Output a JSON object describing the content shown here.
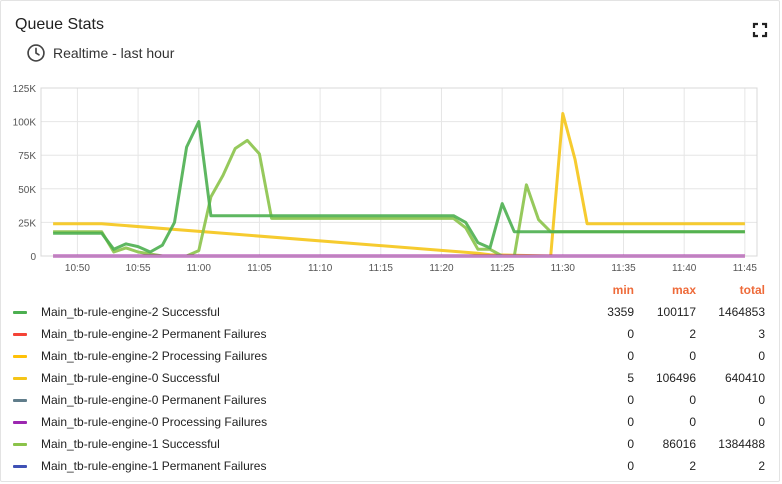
{
  "widget": {
    "title": "Queue Stats",
    "timewindow": "Realtime - last hour",
    "clock_icon": "clock-icon",
    "fullscreen_icon": "fullscreen-icon"
  },
  "legend_header": {
    "min": "min",
    "max": "max",
    "total": "total"
  },
  "legend": [
    {
      "name": "Main_tb-rule-engine-2 Successful",
      "color": "#4caf50",
      "min": "3359",
      "max": "100117",
      "total": "1464853"
    },
    {
      "name": "Main_tb-rule-engine-2 Permanent Failures",
      "color": "#f44336",
      "min": "0",
      "max": "2",
      "total": "3"
    },
    {
      "name": "Main_tb-rule-engine-2 Processing Failures",
      "color": "#ffc107",
      "min": "0",
      "max": "0",
      "total": "0"
    },
    {
      "name": "Main_tb-rule-engine-0 Successful",
      "color": "#f5c518",
      "min": "5",
      "max": "106496",
      "total": "640410"
    },
    {
      "name": "Main_tb-rule-engine-0 Permanent Failures",
      "color": "#607d8b",
      "min": "0",
      "max": "0",
      "total": "0"
    },
    {
      "name": "Main_tb-rule-engine-0 Processing Failures",
      "color": "#9c27b0",
      "min": "0",
      "max": "0",
      "total": "0"
    },
    {
      "name": "Main_tb-rule-engine-1 Successful",
      "color": "#8bc34a",
      "min": "0",
      "max": "86016",
      "total": "1384488"
    },
    {
      "name": "Main_tb-rule-engine-1 Permanent Failures",
      "color": "#3f51b5",
      "min": "0",
      "max": "2",
      "total": "2"
    }
  ],
  "chart_data": {
    "type": "line",
    "x_unit": "minutes",
    "xlim": [
      "10:47",
      "11:46"
    ],
    "ylim": [
      0,
      125000
    ],
    "grid": true,
    "x_ticks": [
      "10:50",
      "10:55",
      "11:00",
      "11:05",
      "11:10",
      "11:15",
      "11:20",
      "11:25",
      "11:30",
      "11:35",
      "11:40",
      "11:45"
    ],
    "y_ticks": [
      {
        "label": "0",
        "value": 0
      },
      {
        "label": "25K",
        "value": 25000
      },
      {
        "label": "50K",
        "value": 50000
      },
      {
        "label": "75K",
        "value": 75000
      },
      {
        "label": "100K",
        "value": 100000
      },
      {
        "label": "125K",
        "value": 125000
      }
    ],
    "series": [
      {
        "name": "Main_tb-rule-engine-0 Successful",
        "color": "#f5c518",
        "points": [
          [
            "10:48",
            24000
          ],
          [
            "10:52",
            24000
          ],
          [
            "11:23",
            2000
          ],
          [
            "11:24",
            1000
          ],
          [
            "11:29",
            0
          ],
          [
            "11:30",
            106000
          ],
          [
            "11:31",
            72000
          ],
          [
            "11:32",
            24000
          ],
          [
            "11:45",
            24000
          ]
        ]
      },
      {
        "name": "Main_tb-rule-engine-1 Successful",
        "color": "#8bc34a",
        "points": [
          [
            "10:48",
            18000
          ],
          [
            "10:52",
            18000
          ],
          [
            "10:53",
            3000
          ],
          [
            "10:54",
            6000
          ],
          [
            "10:55",
            3000
          ],
          [
            "10:57",
            0
          ],
          [
            "10:59",
            0
          ],
          [
            "11:00",
            4000
          ],
          [
            "11:01",
            44000
          ],
          [
            "11:02",
            60000
          ],
          [
            "11:03",
            80000
          ],
          [
            "11:04",
            86000
          ],
          [
            "11:05",
            76000
          ],
          [
            "11:06",
            28000
          ],
          [
            "11:21",
            28000
          ],
          [
            "11:22",
            21000
          ],
          [
            "11:23",
            5000
          ],
          [
            "11:24",
            5000
          ],
          [
            "11:25",
            0
          ],
          [
            "11:26",
            0
          ],
          [
            "11:27",
            53000
          ],
          [
            "11:28",
            27000
          ],
          [
            "11:29",
            18000
          ],
          [
            "11:45",
            18000
          ]
        ]
      },
      {
        "name": "Main_tb-rule-engine-2 Successful",
        "color": "#4caf50",
        "points": [
          [
            "10:48",
            17000
          ],
          [
            "10:52",
            17000
          ],
          [
            "10:53",
            5000
          ],
          [
            "10:54",
            9000
          ],
          [
            "10:55",
            7000
          ],
          [
            "10:56",
            3000
          ],
          [
            "10:57",
            8000
          ],
          [
            "10:58",
            25000
          ],
          [
            "10:59",
            81000
          ],
          [
            "11:00",
            100000
          ],
          [
            "11:01",
            30000
          ],
          [
            "11:21",
            30000
          ],
          [
            "11:22",
            25000
          ],
          [
            "11:23",
            10000
          ],
          [
            "11:24",
            6000
          ],
          [
            "11:25",
            39000
          ],
          [
            "11:26",
            18000
          ],
          [
            "11:45",
            18000
          ]
        ]
      },
      {
        "name": "Main_tb-rule-engine-2 Permanent Failures",
        "color": "#f44336",
        "points": [
          [
            "10:48",
            0
          ],
          [
            "11:45",
            0
          ]
        ]
      },
      {
        "name": "Main_tb-rule-engine-0 Processing Failures",
        "color": "#9c27b0",
        "points": [
          [
            "10:48",
            0
          ],
          [
            "11:45",
            0
          ]
        ]
      }
    ]
  }
}
